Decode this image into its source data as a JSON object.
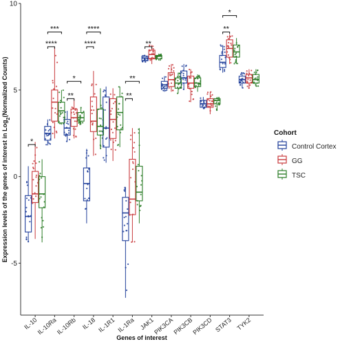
{
  "chart_data": {
    "type": "box",
    "xlabel": "Genes of interest",
    "ylabel_parts": [
      "Expression levels of the genes of interest in Log",
      "2",
      "(Normalized Counts)"
    ],
    "ylim": [
      -8,
      10
    ],
    "yticks": [
      -5,
      0,
      5,
      10
    ],
    "grid": false,
    "legend": {
      "title": "Cohort",
      "placement": "right"
    },
    "categories": [
      "IL-10",
      "IL-10Ra",
      "IL-10Rb",
      "IL-18",
      "IL-1R1",
      "IL-1Ra",
      "JAK1",
      "PIK3CA",
      "PIK3CB",
      "PIK3CD",
      "STAT3",
      "TYK2"
    ],
    "series": [
      {
        "name": "Control Cortex",
        "color": "#1f3e9a",
        "boxes": [
          {
            "min": -3.8,
            "q1": -3.2,
            "median": -2.3,
            "q3": -1.1,
            "max": 0.6
          },
          {
            "min": 1.8,
            "q1": 2.1,
            "median": 2.5,
            "q3": 2.9,
            "max": 3.3
          },
          {
            "min": 2.0,
            "q1": 2.4,
            "median": 2.8,
            "q3": 3.3,
            "max": 3.8
          },
          {
            "min": -2.7,
            "q1": -1.4,
            "median": -0.4,
            "q3": 0.5,
            "max": 1.6
          },
          {
            "min": 0.8,
            "q1": 1.7,
            "median": 2.8,
            "q3": 4.6,
            "max": 5.2
          },
          {
            "min": -7.0,
            "q1": -3.7,
            "median": -2.1,
            "q3": -1.2,
            "max": -0.6
          },
          {
            "min": 6.6,
            "q1": 6.7,
            "median": 6.85,
            "q3": 6.95,
            "max": 7.0
          },
          {
            "min": 4.9,
            "q1": 5.1,
            "median": 5.3,
            "q3": 5.5,
            "max": 5.8
          },
          {
            "min": 5.0,
            "q1": 5.4,
            "median": 5.7,
            "q3": 6.1,
            "max": 6.5
          },
          {
            "min": 3.9,
            "q1": 4.0,
            "median": 4.2,
            "q3": 4.4,
            "max": 4.6
          },
          {
            "min": 6.0,
            "q1": 6.3,
            "median": 6.6,
            "q3": 7.0,
            "max": 7.6
          },
          {
            "min": 5.1,
            "q1": 5.4,
            "median": 5.6,
            "q3": 5.8,
            "max": 6.0
          }
        ]
      },
      {
        "name": "GG",
        "color": "#c8383b",
        "boxes": [
          {
            "min": -3.6,
            "q1": -1.5,
            "median": -1.0,
            "q3": 0.3,
            "max": 2.0
          },
          {
            "min": 2.2,
            "q1": 3.2,
            "median": 4.3,
            "q3": 5.0,
            "max": 7.5
          },
          {
            "min": 2.2,
            "q1": 2.9,
            "median": 3.4,
            "q3": 3.9,
            "max": 4.5
          },
          {
            "min": 1.2,
            "q1": 2.6,
            "median": 3.2,
            "q3": 4.6,
            "max": 6.1
          },
          {
            "min": 0.9,
            "q1": 2.2,
            "median": 3.3,
            "q3": 4.5,
            "max": 5.1
          },
          {
            "min": -3.8,
            "q1": -2.2,
            "median": -1.3,
            "q3": 1.0,
            "max": 2.8
          },
          {
            "min": 6.5,
            "q1": 6.8,
            "median": 7.05,
            "q3": 7.3,
            "max": 7.6
          },
          {
            "min": 4.9,
            "q1": 5.2,
            "median": 5.6,
            "q3": 6.0,
            "max": 6.5
          },
          {
            "min": 4.3,
            "q1": 5.1,
            "median": 5.4,
            "q3": 5.8,
            "max": 6.2
          },
          {
            "min": 3.6,
            "q1": 4.0,
            "median": 4.2,
            "q3": 4.5,
            "max": 4.9
          },
          {
            "min": 6.5,
            "q1": 6.9,
            "median": 7.4,
            "q3": 7.9,
            "max": 8.2
          },
          {
            "min": 5.1,
            "q1": 5.4,
            "median": 5.7,
            "q3": 5.9,
            "max": 6.2
          }
        ]
      },
      {
        "name": "TSC",
        "color": "#2b7d27",
        "boxes": [
          {
            "min": -3.8,
            "q1": -1.8,
            "median": -1.0,
            "q3": 0.0,
            "max": 1.0
          },
          {
            "min": 3.0,
            "q1": 3.1,
            "median": 3.8,
            "q3": 4.3,
            "max": 5.0
          },
          {
            "min": 3.0,
            "q1": 3.2,
            "median": 3.4,
            "q3": 3.7,
            "max": 4.0
          },
          {
            "min": 1.6,
            "q1": 2.4,
            "median": 2.9,
            "q3": 3.9,
            "max": 5.1
          },
          {
            "min": 1.7,
            "q1": 2.7,
            "median": 3.7,
            "q3": 4.6,
            "max": 5.2
          },
          {
            "min": -2.7,
            "q1": -1.4,
            "median": -0.9,
            "q3": 0.6,
            "max": 2.8
          },
          {
            "min": 6.7,
            "q1": 6.8,
            "median": 6.95,
            "q3": 7.0,
            "max": 7.1
          },
          {
            "min": 4.8,
            "q1": 5.1,
            "median": 5.4,
            "q3": 5.7,
            "max": 6.0
          },
          {
            "min": 4.9,
            "q1": 5.2,
            "median": 5.4,
            "q3": 5.7,
            "max": 5.9
          },
          {
            "min": 3.8,
            "q1": 4.2,
            "median": 4.4,
            "q3": 4.5,
            "max": 4.6
          },
          {
            "min": 6.5,
            "q1": 6.9,
            "median": 7.2,
            "q3": 7.6,
            "max": 8.0
          },
          {
            "min": 5.2,
            "q1": 5.4,
            "median": 5.6,
            "q3": 5.9,
            "max": 6.2
          }
        ]
      }
    ],
    "significance": [
      {
        "category": "IL-10",
        "from": "Control Cortex",
        "to": "GG",
        "label": "*",
        "y": 1.85
      },
      {
        "category": "IL-10Ra",
        "from": "Control Cortex",
        "to": "GG",
        "label": "****",
        "y": 7.5
      },
      {
        "category": "IL-10Ra",
        "from": "Control Cortex",
        "to": "TSC",
        "label": "***",
        "y": 8.35
      },
      {
        "category": "IL-10Rb",
        "from": "Control Cortex",
        "to": "GG",
        "label": "**",
        "y": 4.5
      },
      {
        "category": "IL-10Rb",
        "from": "Control Cortex",
        "to": "TSC",
        "label": "*",
        "y": 5.5
      },
      {
        "category": "IL-18",
        "from": "Control Cortex",
        "to": "GG",
        "label": "****",
        "y": 7.5
      },
      {
        "category": "IL-18",
        "from": "Control Cortex",
        "to": "TSC",
        "label": "****",
        "y": 8.35
      },
      {
        "category": "IL-1Ra",
        "from": "Control Cortex",
        "to": "GG",
        "label": "**",
        "y": 4.5
      },
      {
        "category": "IL-1Ra",
        "from": "Control Cortex",
        "to": "TSC",
        "label": "**",
        "y": 5.5
      },
      {
        "category": "JAK1",
        "from": "Control Cortex",
        "to": "GG",
        "label": "**",
        "y": 7.5
      },
      {
        "category": "STAT3",
        "from": "Control Cortex",
        "to": "GG",
        "label": "**",
        "y": 8.35
      },
      {
        "category": "STAT3",
        "from": "Control Cortex",
        "to": "TSC",
        "label": "*",
        "y": 9.3
      }
    ]
  }
}
